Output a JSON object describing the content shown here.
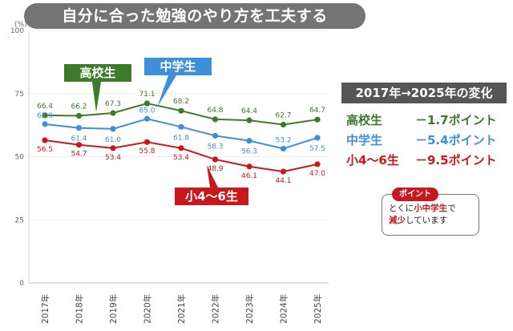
{
  "banner": "自分に合った勉強のやり方を工夫する",
  "chart_data": {
    "type": "line",
    "y_unit": "(%)",
    "ylim": [
      0,
      100
    ],
    "yticks": [
      "0",
      "25",
      "50",
      "75",
      "100"
    ],
    "categories": [
      "2017年",
      "2018年",
      "2019年",
      "2020年",
      "2021年",
      "2022年",
      "2023年",
      "2024年",
      "2025年"
    ],
    "series": [
      {
        "name": "高校生",
        "color": "#3d7a2a",
        "values": [
          66.4,
          66.2,
          67.3,
          71.1,
          68.2,
          64.8,
          64.4,
          62.7,
          64.7
        ]
      },
      {
        "name": "中学生",
        "color": "#3f8fd8",
        "values": [
          62.9,
          61.4,
          61.0,
          65.0,
          61.8,
          58.3,
          56.3,
          53.2,
          57.5
        ]
      },
      {
        "name": "小4～6生",
        "color": "#c8171d",
        "values": [
          56.5,
          54.7,
          53.4,
          55.8,
          53.4,
          48.9,
          46.1,
          44.1,
          47.0
        ]
      }
    ],
    "grid": true
  },
  "summary": {
    "title": "2017年→2025年の変化",
    "rows": [
      {
        "label": "高校生",
        "value": "－1.7ポイント",
        "color": "#3d7a2a"
      },
      {
        "label": "中学生",
        "value": "－5.4ポイント",
        "color": "#3f8fd8"
      },
      {
        "label": "小4～6生",
        "value": "－9.5ポイント",
        "color": "#c8171d"
      }
    ]
  },
  "note": {
    "badge": "ポイント",
    "text_pre": "とくに",
    "text_highlight1": "小中学生",
    "text_mid": "で",
    "text_highlight2": "減少",
    "text_post": "しています"
  }
}
